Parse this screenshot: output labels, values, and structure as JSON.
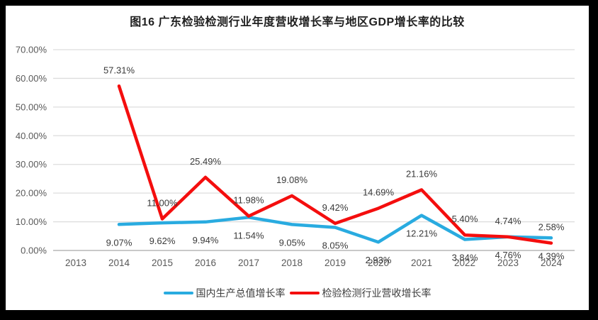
{
  "title": "图16 广东检验检测行业年度营收增长率与地区GDP增长率的比较",
  "chart_data": {
    "type": "line",
    "title": "图16 广东检验检测行业年度营收增长率与地区GDP增长率的比较",
    "categories": [
      "2013",
      "2014",
      "2015",
      "2016",
      "2017",
      "2018",
      "2019",
      "2020",
      "2021",
      "2022",
      "2023",
      "2024"
    ],
    "series": [
      {
        "name": "国内生产总值增长率",
        "color": "#29ABE0",
        "label_position": "below",
        "values": [
          null,
          9.07,
          9.62,
          9.94,
          11.54,
          9.05,
          8.05,
          2.93,
          12.21,
          3.84,
          4.76,
          4.39
        ],
        "data_labels": [
          "",
          "9.07%",
          "9.62%",
          "9.94%",
          "11.54%",
          "9.05%",
          "8.05%",
          "2.93%",
          "12.21%",
          "3.84%",
          "4.76%",
          "4.39%"
        ]
      },
      {
        "name": "检验检测行业营收增长率",
        "color": "#F40E0E",
        "label_position": "above",
        "values": [
          null,
          57.31,
          11.0,
          25.49,
          11.98,
          19.08,
          9.42,
          14.69,
          21.16,
          5.4,
          4.74,
          2.58
        ],
        "data_labels": [
          "",
          "57.31%",
          "11.00%",
          "25.49%",
          "11.98%",
          "19.08%",
          "9.42%",
          "14.69%",
          "21.16%",
          "5.40%",
          "4.74%",
          "2.58%"
        ]
      }
    ],
    "y_axis": {
      "min": 0,
      "max": 70,
      "step": 10,
      "tick_labels": [
        "0.00%",
        "10.00%",
        "20.00%",
        "30.00%",
        "40.00%",
        "50.00%",
        "60.00%",
        "70.00%"
      ]
    },
    "grid": true,
    "legend_position": "bottom"
  },
  "style": {
    "background": "#FFFFFF",
    "frame_color": "#000000",
    "grid_color": "#DDDDDD",
    "axis_line_color": "#C9C9C9",
    "tick_label_color": "#595959",
    "data_label_color": "#3a3a3a",
    "title_color": "#1f1f1f"
  }
}
